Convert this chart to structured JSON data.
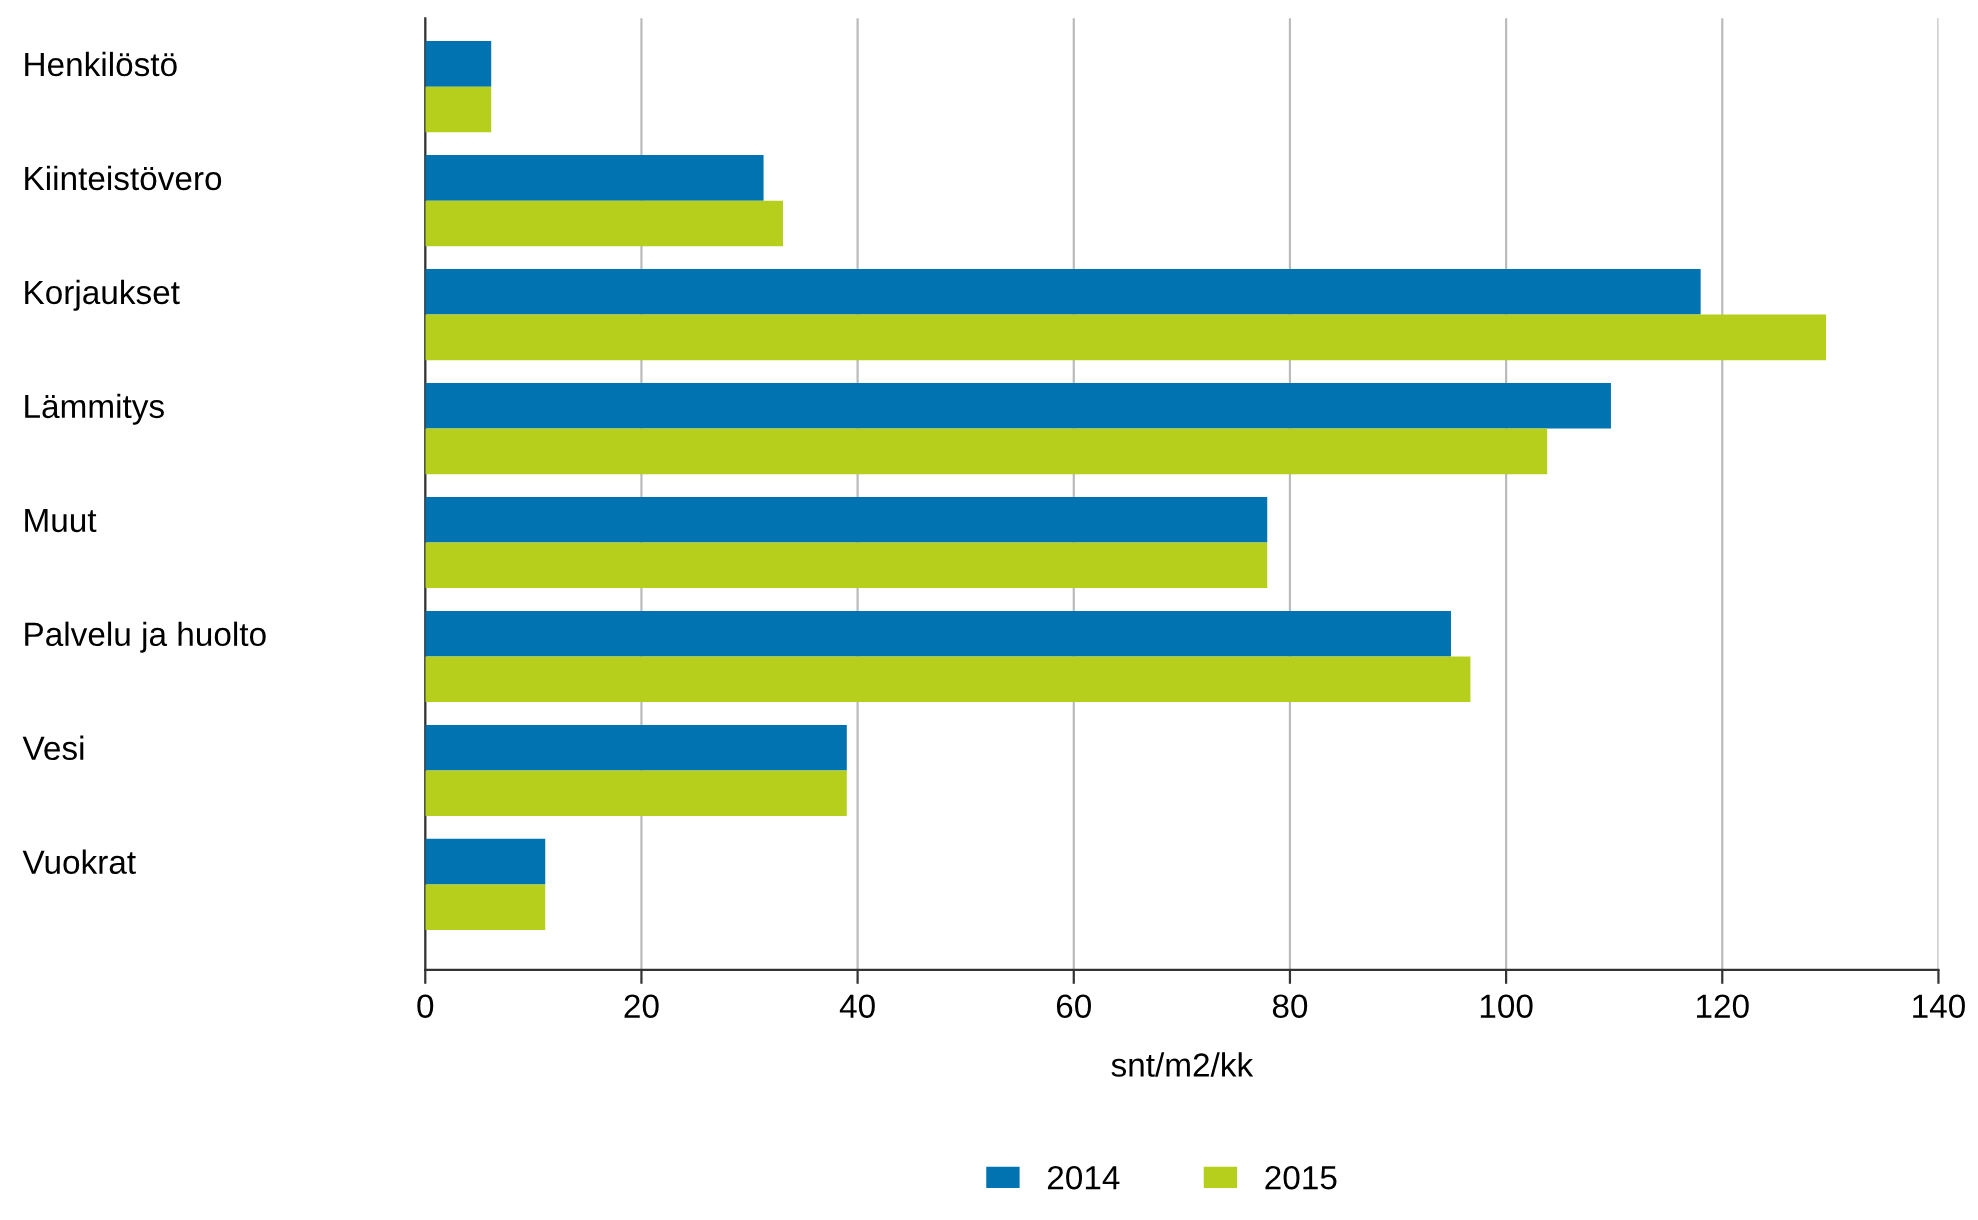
{
  "chart_data": {
    "type": "bar",
    "orientation": "horizontal",
    "xlabel": "snt/m2/kk",
    "categories": [
      "Henkilöstö",
      "Kiinteistövero",
      "Korjaukset",
      "Lämmitys",
      "Muut",
      "Palvelu ja huolto",
      "Vesi",
      "Vuokrat"
    ],
    "series": [
      {
        "name": "2014",
        "color": "#0073b0",
        "values": [
          6.1,
          31.3,
          118,
          109.7,
          77.9,
          94.9,
          39,
          11.1
        ]
      },
      {
        "name": "2015",
        "color": "#b5cf1c",
        "values": [
          6.1,
          33.1,
          129.6,
          103.8,
          77.9,
          96.7,
          39,
          11.1
        ]
      }
    ],
    "xlim": [
      0,
      140
    ],
    "xticks": [
      0,
      20,
      40,
      60,
      80,
      100,
      120,
      140
    ],
    "grid": "x",
    "legend": "bottom"
  }
}
